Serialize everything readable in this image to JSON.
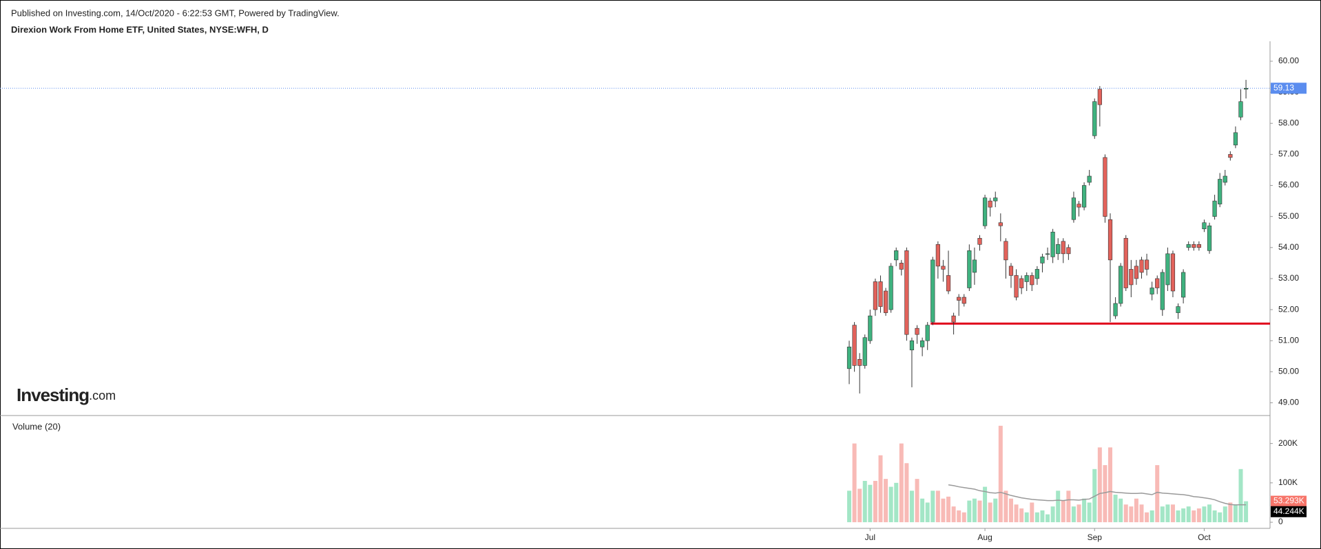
{
  "chart_data": {
    "type": "candlestick",
    "subtitle": "Published on Investing.com, 14/Oct/2020 - 6:22:53 GMT, Powered by TradingView.",
    "title": "Direxion Work From Home ETF, United States, NYSE:WFH, D",
    "logo_main": "Investing",
    "logo_suffix": ".com",
    "up_color": "#3fb27f",
    "down_color": "#e2625b",
    "grid": false,
    "categories": [
      null,
      null,
      null,
      null,
      "Jul",
      null,
      null,
      null,
      null,
      null,
      null,
      null,
      null,
      null,
      null,
      null,
      null,
      null,
      null,
      null,
      null,
      null,
      null,
      null,
      null,
      null,
      "Aug",
      null,
      null,
      null,
      null,
      null,
      null,
      null,
      null,
      null,
      null,
      null,
      null,
      null,
      null,
      null,
      null,
      null,
      null,
      null,
      null,
      "Sep",
      null,
      null,
      null,
      null,
      null,
      null,
      null,
      null,
      null,
      null,
      null,
      null,
      null,
      null,
      null,
      null,
      null,
      null,
      null,
      null,
      "Oct",
      null,
      null,
      null,
      null,
      null,
      null,
      null,
      null
    ],
    "open": [
      50.1,
      51.5,
      50.4,
      50.2,
      51.0,
      52.9,
      52.9,
      52.6,
      52.0,
      53.6,
      53.5,
      53.9,
      50.7,
      51.4,
      50.8,
      51.0,
      51.6,
      54.1,
      53.4,
      53.1,
      51.8,
      52.4,
      52.4,
      52.7,
      53.2,
      54.3,
      54.7,
      55.5,
      55.5,
      54.8,
      54.2,
      53.4,
      53.1,
      53.0,
      52.9,
      53.1,
      53.0,
      53.5,
      53.8,
      53.7,
      53.8,
      54.2,
      54.0,
      54.9,
      55.4,
      55.3,
      56.1,
      57.6,
      59.1,
      56.9,
      54.9,
      51.8,
      52.2,
      54.3,
      53.3,
      53.4,
      53.6,
      53.6,
      52.5,
      53.0,
      52.0,
      52.8,
      53.8,
      51.9,
      52.4,
      54.0,
      54.1,
      54.1,
      54.6,
      53.9,
      55.0,
      55.4,
      56.1,
      57.0,
      57.3,
      58.2,
      59.1
    ],
    "high": [
      51.0,
      51.6,
      50.6,
      51.2,
      52.0,
      53.0,
      53.1,
      52.7,
      53.5,
      54.0,
      53.6,
      54.0,
      51.1,
      51.5,
      51.1,
      51.6,
      53.7,
      54.2,
      53.6,
      53.9,
      51.9,
      52.5,
      52.5,
      54.1,
      54.0,
      54.4,
      55.7,
      55.6,
      55.8,
      55.1,
      54.3,
      53.5,
      53.3,
      53.1,
      53.2,
      53.2,
      53.4,
      53.8,
      54.0,
      54.6,
      54.3,
      54.3,
      54.1,
      55.8,
      55.5,
      56.1,
      56.5,
      58.8,
      59.2,
      57.0,
      55.1,
      52.4,
      53.5,
      54.4,
      53.6,
      53.6,
      53.7,
      53.8,
      52.9,
      53.1,
      53.3,
      54.0,
      53.9,
      52.2,
      53.3,
      54.2,
      54.2,
      54.2,
      54.9,
      54.8,
      55.7,
      56.4,
      56.5,
      57.1,
      57.9,
      59.1,
      59.4
    ],
    "low": [
      49.6,
      50.0,
      49.3,
      50.1,
      50.9,
      51.8,
      51.9,
      51.8,
      51.9,
      53.4,
      53.1,
      51.0,
      49.5,
      50.9,
      50.5,
      50.7,
      51.5,
      53.0,
      52.9,
      52.5,
      51.2,
      51.8,
      52.1,
      52.6,
      52.8,
      53.9,
      54.6,
      55.0,
      55.3,
      54.2,
      53.0,
      52.7,
      52.3,
      52.5,
      52.6,
      52.6,
      52.8,
      53.2,
      53.6,
      53.5,
      53.6,
      53.5,
      53.6,
      54.8,
      55.0,
      55.2,
      56.0,
      57.5,
      57.9,
      54.8,
      51.6,
      51.7,
      52.1,
      52.6,
      52.4,
      52.8,
      53.0,
      53.1,
      52.3,
      52.5,
      51.8,
      52.6,
      52.4,
      51.7,
      52.2,
      53.9,
      53.9,
      53.9,
      54.5,
      53.8,
      54.9,
      55.3,
      56.0,
      56.8,
      57.2,
      58.1,
      58.8
    ],
    "close": [
      50.8,
      50.2,
      50.2,
      51.1,
      51.8,
      52.0,
      52.1,
      51.9,
      53.4,
      53.9,
      53.3,
      51.2,
      51.0,
      51.2,
      51.0,
      51.5,
      53.6,
      53.4,
      53.3,
      52.6,
      51.6,
      52.3,
      52.2,
      53.9,
      53.6,
      54.1,
      55.6,
      55.3,
      55.6,
      54.7,
      53.6,
      53.1,
      52.4,
      52.7,
      53.1,
      52.8,
      53.3,
      53.7,
      53.8,
      54.5,
      54.1,
      53.8,
      53.8,
      55.6,
      55.3,
      56.0,
      56.3,
      58.7,
      58.6,
      55.0,
      53.6,
      52.2,
      53.4,
      52.7,
      52.8,
      53.0,
      53.2,
      53.3,
      52.7,
      52.7,
      53.2,
      53.8,
      52.6,
      52.1,
      53.2,
      54.1,
      54.0,
      54.0,
      54.8,
      54.7,
      55.5,
      56.2,
      56.3,
      56.9,
      57.7,
      58.7,
      59.13
    ],
    "ylim": [
      48.59,
      60.62
    ],
    "yticks": [
      {
        "value": 49,
        "label": "49.00"
      },
      {
        "value": 50,
        "label": "50.00"
      },
      {
        "value": 51,
        "label": "51.00"
      },
      {
        "value": 52,
        "label": "52.00"
      },
      {
        "value": 53,
        "label": "53.00"
      },
      {
        "value": 54,
        "label": "54.00"
      },
      {
        "value": 55,
        "label": "55.00"
      },
      {
        "value": 56,
        "label": "56.00"
      },
      {
        "value": 57,
        "label": "57.00"
      },
      {
        "value": 58,
        "label": "58.00"
      },
      {
        "value": 59,
        "label": "59.00"
      },
      {
        "value": 60,
        "label": "60.00"
      }
    ],
    "last_price_color": "#5b8def",
    "support_level": 51.55,
    "support_color": "#e0001b",
    "volume": {
      "name": "Volume (20)",
      "up_color": "#a3e6c6",
      "down_color": "#f8bab6",
      "values": [
        80000,
        200000,
        85000,
        105000,
        95000,
        105000,
        170000,
        110000,
        90000,
        100000,
        200000,
        150000,
        80000,
        110000,
        60000,
        50000,
        80000,
        80000,
        60000,
        65000,
        40000,
        30000,
        25000,
        55000,
        60000,
        55000,
        90000,
        50000,
        60000,
        245000,
        80000,
        60000,
        45000,
        35000,
        25000,
        50000,
        25000,
        30000,
        20000,
        40000,
        80000,
        55000,
        80000,
        40000,
        45000,
        60000,
        50000,
        135000,
        190000,
        145000,
        190000,
        70000,
        60000,
        45000,
        40000,
        60000,
        45000,
        25000,
        30000,
        145000,
        40000,
        45000,
        45000,
        30000,
        35000,
        40000,
        30000,
        35000,
        40000,
        45000,
        30000,
        25000,
        40000,
        50000,
        45000,
        135000,
        53293
      ],
      "last_value_label": "53.293K",
      "last_label_color": "#f7756a",
      "ylim": [
        -15600,
        264000
      ],
      "yticks": [
        0,
        {
          "value": 100000,
          "label": "100K"
        },
        {
          "value": 200000,
          "label": "200K"
        }
      ]
    },
    "ma": {
      "color": "#999999",
      "values": [
        null,
        null,
        null,
        null,
        null,
        null,
        null,
        null,
        null,
        null,
        null,
        null,
        null,
        null,
        null,
        null,
        null,
        null,
        null,
        95000,
        93000,
        90000,
        88000,
        86000,
        84000,
        80000,
        78000,
        75000,
        74000,
        76000,
        72000,
        68000,
        65000,
        62000,
        60000,
        58000,
        57000,
        56000,
        55000,
        55000,
        56000,
        55000,
        57000,
        57000,
        56000,
        58000,
        59000,
        66000,
        73000,
        75000,
        78000,
        76000,
        75000,
        74000,
        73000,
        73000,
        74000,
        72000,
        70000,
        76000,
        74000,
        73000,
        72000,
        71000,
        70000,
        68000,
        65000,
        64000,
        62000,
        60000,
        57000,
        52000,
        48000,
        45000,
        44000,
        44500,
        44244
      ],
      "last_value_label": "44.244K",
      "last_label_color": "#000000"
    }
  }
}
